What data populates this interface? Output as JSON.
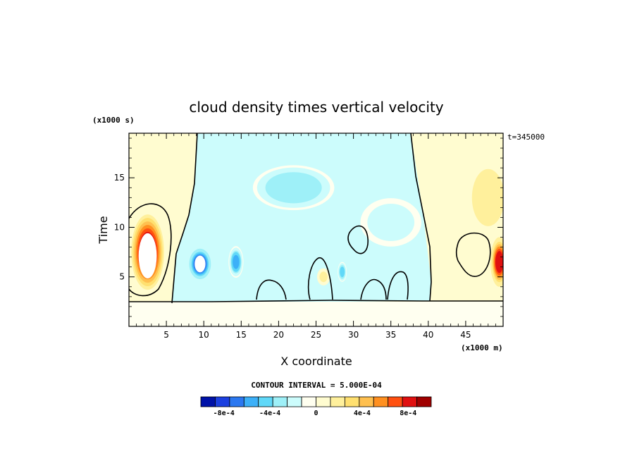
{
  "chart_data": {
    "type": "heatmap",
    "title": "cloud density times vertical velocity",
    "xlabel": "X coordinate",
    "ylabel": "Time",
    "x_unit": "(x1000 m)",
    "y_unit": "(x1000 s)",
    "time_annotation": "t=345000",
    "xlim": [
      0,
      50
    ],
    "ylim": [
      0,
      19.5
    ],
    "x_ticks": [
      "5",
      "10",
      "15",
      "20",
      "25",
      "30",
      "35",
      "40",
      "45"
    ],
    "y_ticks": [
      "5",
      "10",
      "15"
    ],
    "contour_interval_text": "CONTOUR INTERVAL = 5.000E-04",
    "colorbar": {
      "min": -0.001,
      "max": 0.001,
      "labels": [
        "-8e-4",
        "-4e-4",
        "0",
        "4e-4",
        "8e-4"
      ],
      "label_values": [
        -0.0008,
        -0.0004,
        0,
        0.0004,
        0.0008
      ],
      "colors": [
        "#0012a8",
        "#1c40e0",
        "#2c78f0",
        "#3cb0f8",
        "#60d8f8",
        "#9ef0f8",
        "#ccfcfc",
        "#fffff0",
        "#fffcd0",
        "#fff09c",
        "#ffe070",
        "#ffc050",
        "#ff9020",
        "#ff5010",
        "#e01010",
        "#a00000"
      ]
    },
    "features": [
      {
        "kind": "cell",
        "x": 2.5,
        "y": 7.5,
        "sx": 2.2,
        "sy": 3.8,
        "value": 0.00115
      },
      {
        "kind": "cell",
        "x": 9.5,
        "y": 6.3,
        "sx": 1.6,
        "sy": 1.7,
        "value": -0.00095
      },
      {
        "kind": "cell",
        "x": 14.3,
        "y": 6.5,
        "sx": 1.0,
        "sy": 1.6,
        "value": -0.0006
      },
      {
        "kind": "cell",
        "x": 22,
        "y": 14,
        "sx": 6,
        "sy": 2.5,
        "value": -0.0004
      },
      {
        "kind": "cell",
        "x": 35,
        "y": 10.5,
        "sx": 5,
        "sy": 3,
        "value": -0.0002
      },
      {
        "kind": "cell",
        "x": 28.5,
        "y": 5.5,
        "sx": 0.6,
        "sy": 1.0,
        "value": -0.0005
      },
      {
        "kind": "cell",
        "x": 26,
        "y": 5,
        "sx": 1.2,
        "sy": 1.2,
        "value": 0.00015
      },
      {
        "kind": "cell",
        "x": 49.5,
        "y": 6.5,
        "sx": 1.2,
        "sy": 2.5,
        "value": 0.0009
      },
      {
        "kind": "cell",
        "x": 48,
        "y": 13,
        "sx": 3,
        "sy": 4,
        "value": 0.00025
      }
    ]
  }
}
